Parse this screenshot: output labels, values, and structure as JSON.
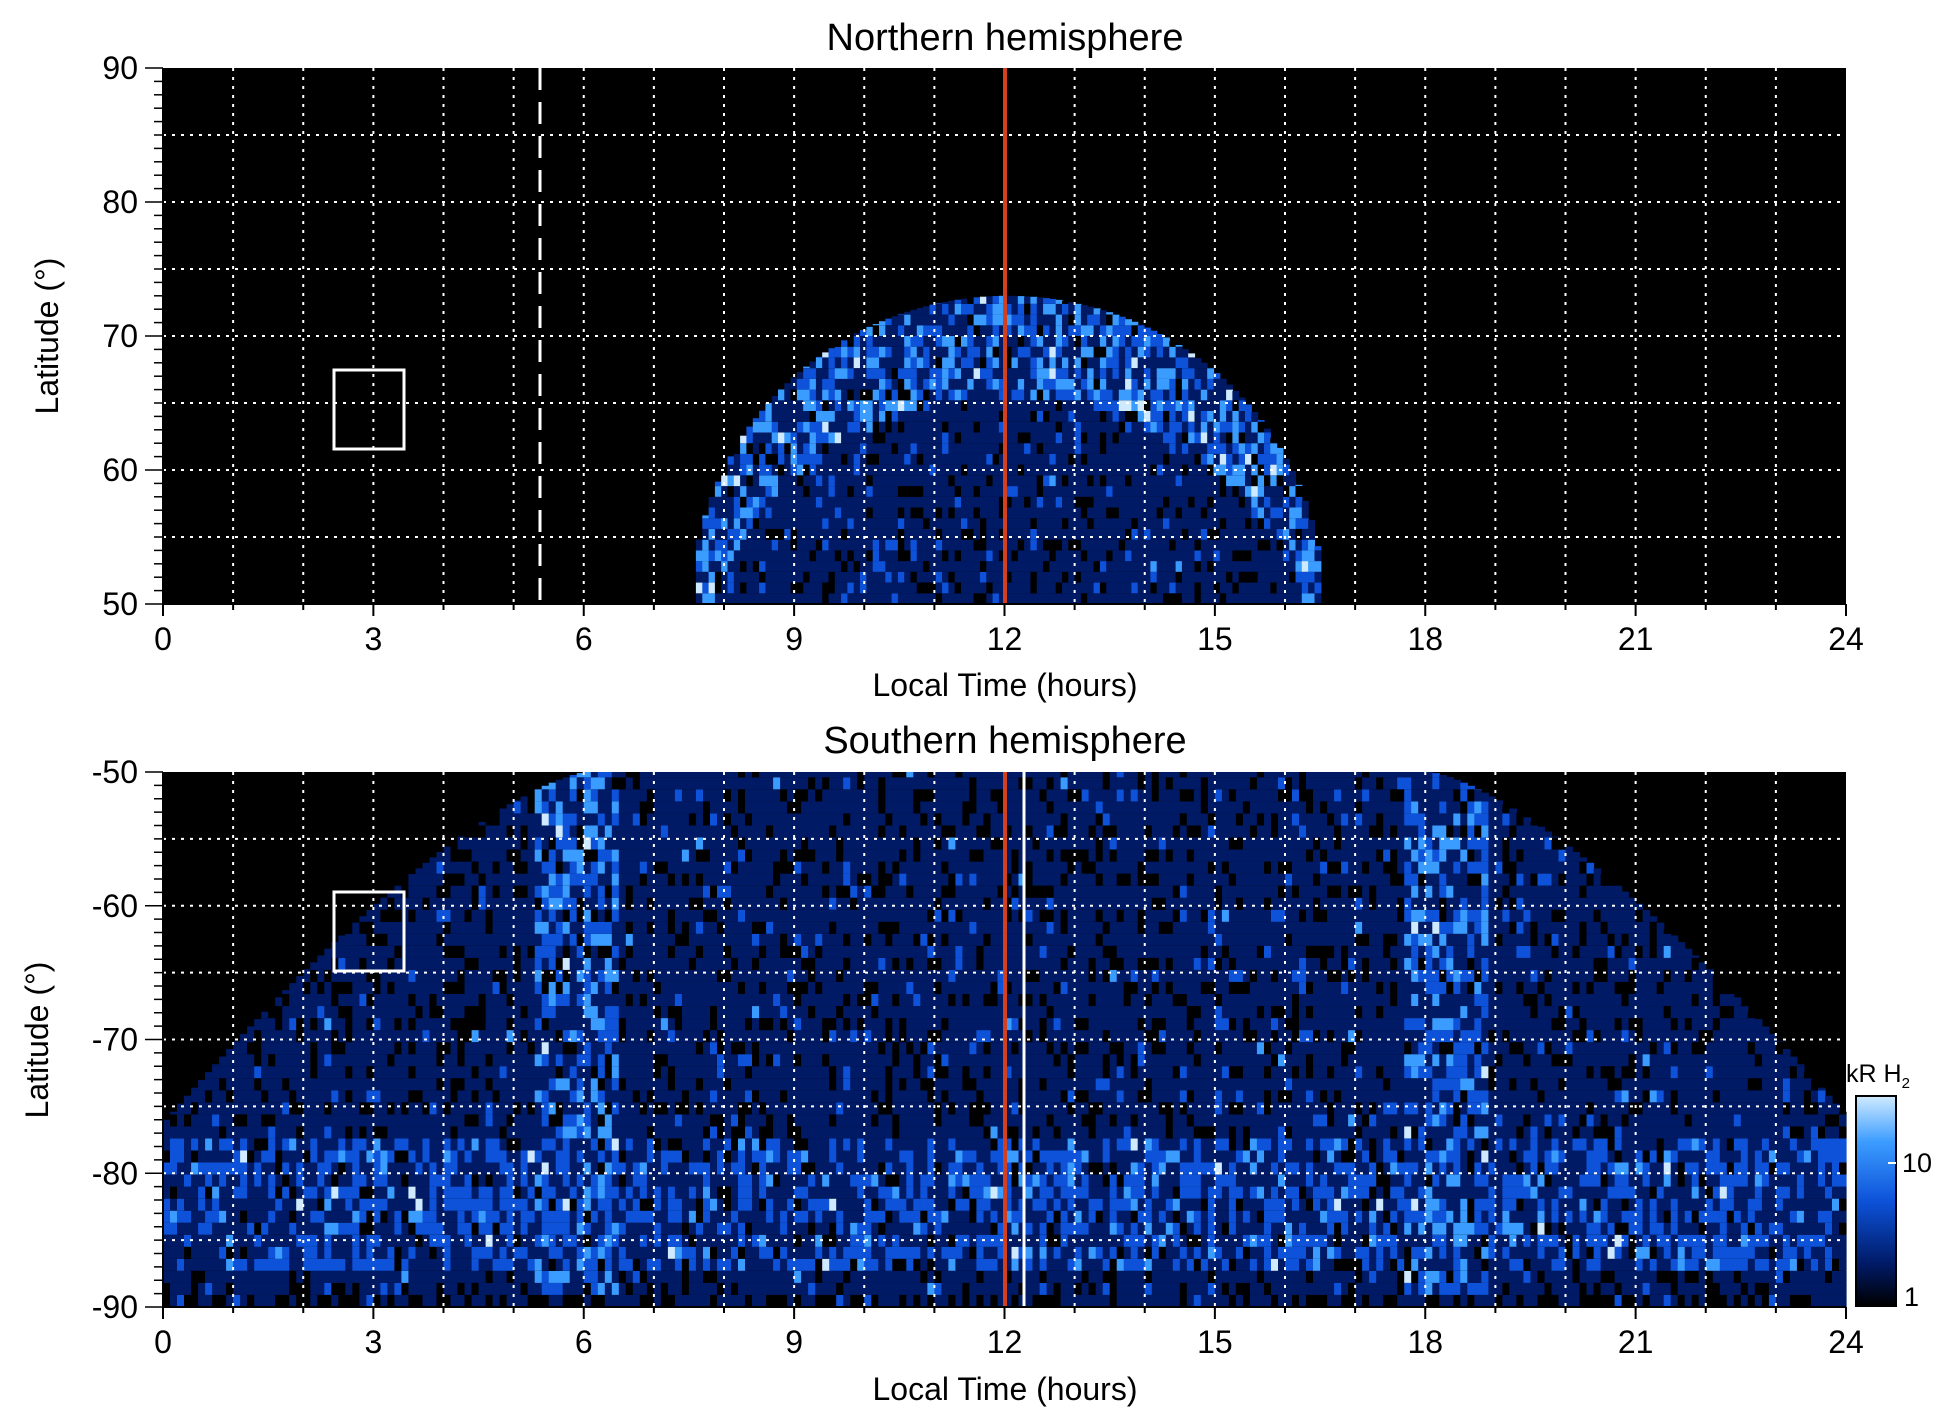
{
  "chart_data": [
    {
      "type": "heatmap",
      "title": "Northern hemisphere",
      "xlabel": "Local Time (hours)",
      "ylabel": "Latitude (°)",
      "xlim": [
        0,
        24
      ],
      "ylim": [
        50,
        90
      ],
      "xticks": [
        "0",
        "3",
        "6",
        "9",
        "12",
        "15",
        "18",
        "21",
        "24"
      ],
      "yticks": [
        "50",
        "60",
        "70",
        "80",
        "90"
      ],
      "grid": true,
      "emission_region": {
        "lt_range": [
          7.6,
          16.6
        ],
        "lat_max_at_noon": 73,
        "bright_oval_lat": [
          63,
          71
        ],
        "peak_kR": 25
      },
      "noon_line_lt": 12,
      "dashed_line_lt": 5.35,
      "box": {
        "lt": [
          2.4,
          3.4
        ],
        "lat": [
          61.5,
          67.5
        ]
      }
    },
    {
      "type": "heatmap",
      "title": "Southern hemisphere",
      "xlabel": "Local Time (hours)",
      "ylabel": "Latitude (°)",
      "xlim": [
        0,
        24
      ],
      "ylim": [
        -90,
        -50
      ],
      "xticks": [
        "0",
        "3",
        "6",
        "9",
        "12",
        "15",
        "18",
        "21",
        "24"
      ],
      "yticks": [
        "-90",
        "-80",
        "-70",
        "-60",
        "-50"
      ],
      "grid": true,
      "emission_region": {
        "lt_range": [
          0,
          24
        ],
        "bright_arcs_lt": [
          5.8,
          18.2
        ],
        "bright_band_lat": [
          -88,
          -78
        ],
        "peak_kR": 25
      },
      "noon_line_lt": 12,
      "white_line_lt": 12.25,
      "box": {
        "lt": [
          2.4,
          3.4
        ],
        "lat": [
          -65,
          -59
        ]
      }
    }
  ],
  "colorbar": {
    "label_main": "kR H",
    "label_sub": "2",
    "ticks": [
      "1",
      "10"
    ],
    "scale": "log",
    "range": [
      1,
      25
    ],
    "colors": [
      "#000000",
      "#001a66",
      "#0d52d9",
      "#3b9cff",
      "#cfeaff"
    ]
  },
  "colors": {
    "noon_line": "#d2401f",
    "grid": "#ffffff",
    "background": "#000000"
  }
}
